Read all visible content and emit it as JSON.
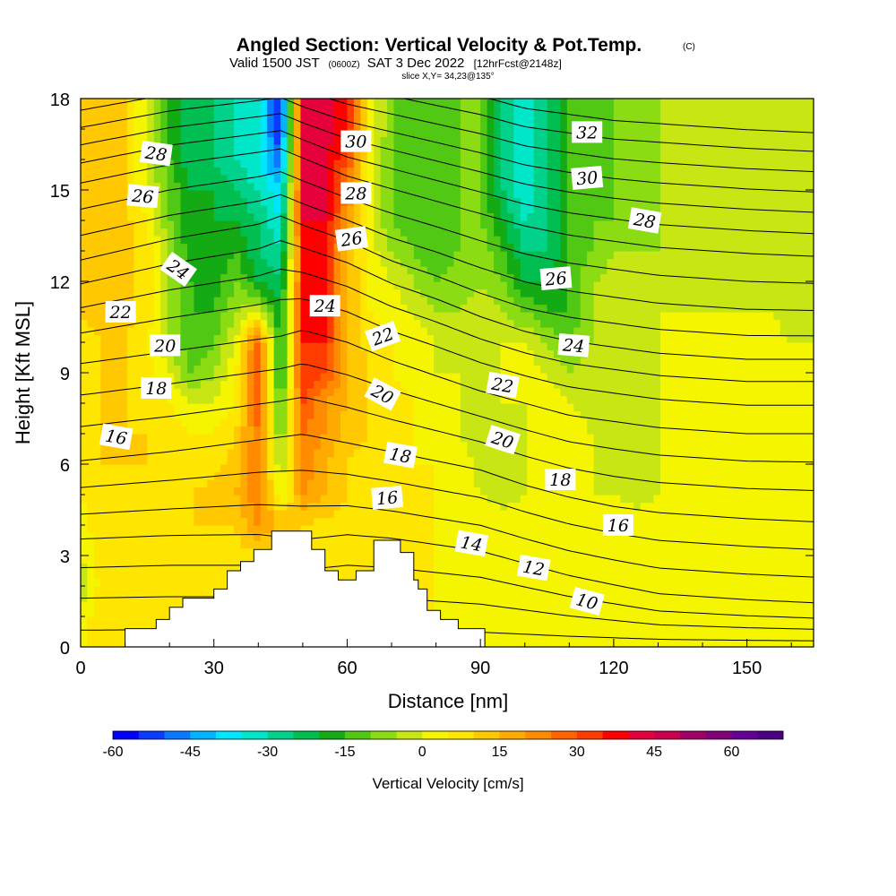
{
  "titles": {
    "main": "Angled Section: Vertical Velocity & Pot.Temp.",
    "main_mark": "(C)",
    "valid_prefix": "Valid 1500 JST",
    "valid_zulu": "(0600Z)",
    "valid_date": "SAT 3 Dec 2022",
    "valid_fcst": "[12hrFcst@2148z]",
    "slice": "slice X,Y= 34,23@135°"
  },
  "chart_data": {
    "type": "heatmap",
    "title": "Angled Section: Vertical Velocity & Pot.Temp.",
    "xlabel": "Distance [nm]",
    "ylabel": "Height [Kft MSL]",
    "xlim": [
      0,
      165
    ],
    "ylim": [
      0,
      18
    ],
    "x_ticks": [
      "0",
      "30",
      "60",
      "90",
      "120",
      "150"
    ],
    "y_ticks": [
      "0",
      "3",
      "6",
      "9",
      "12",
      "15",
      "18"
    ],
    "fill_variable": "Vertical Velocity [cm/s]",
    "contour_variable": "Pot.Temp. (C)",
    "colorbar": {
      "label": "Vertical Velocity [cm/s]",
      "min": -60,
      "max": 70,
      "step": 5,
      "tick_labels": [
        "-60",
        "-45",
        "-30",
        "-15",
        "0",
        "15",
        "30",
        "45",
        "60"
      ],
      "colors": [
        "#0000ff",
        "#0a3cff",
        "#0a78ff",
        "#00b4ff",
        "#00e6ff",
        "#00e6c8",
        "#00d28c",
        "#00be50",
        "#14aa14",
        "#50c814",
        "#8cdc14",
        "#c8e614",
        "#f5f500",
        "#ffe600",
        "#ffc800",
        "#ffaa00",
        "#ff8c00",
        "#ff6400",
        "#ff3c00",
        "#ff0000",
        "#e6003c",
        "#c80050",
        "#a00064",
        "#820078",
        "#640096",
        "#4b0082"
      ]
    },
    "w_cells": {
      "x": [
        0,
        5,
        10,
        15,
        20,
        25,
        30,
        35,
        40,
        45,
        50,
        55,
        60,
        65,
        70,
        75,
        80,
        85,
        90,
        95,
        100,
        105,
        110,
        115,
        120,
        125,
        130,
        135,
        140,
        145,
        150,
        155,
        160,
        165
      ],
      "z": [
        0,
        1,
        2,
        3,
        4,
        5,
        6,
        7,
        8,
        9,
        10,
        11,
        12,
        13,
        14,
        15,
        16,
        17,
        18
      ],
      "rows": [
        [
          3,
          8,
          8,
          8,
          8,
          8,
          8,
          8,
          8,
          8,
          8,
          8,
          8,
          8,
          8,
          8,
          5,
          3,
          3,
          3,
          3,
          3,
          3,
          3,
          3,
          3,
          3,
          3,
          3,
          3,
          3,
          3,
          3,
          3
        ],
        [
          3,
          8,
          8,
          8,
          8,
          8,
          8,
          8,
          8,
          8,
          8,
          8,
          8,
          8,
          8,
          8,
          5,
          3,
          3,
          3,
          3,
          3,
          3,
          3,
          3,
          3,
          3,
          3,
          3,
          3,
          3,
          3,
          3,
          3
        ],
        [
          -5,
          8,
          8,
          8,
          8,
          8,
          8,
          8,
          8,
          8,
          8,
          8,
          8,
          8,
          8,
          8,
          5,
          3,
          3,
          3,
          3,
          3,
          3,
          3,
          3,
          3,
          3,
          3,
          3,
          3,
          3,
          3,
          3,
          3
        ],
        [
          0,
          8,
          8,
          8,
          8,
          8,
          8,
          8,
          8,
          8,
          8,
          8,
          8,
          8,
          8,
          8,
          5,
          3,
          3,
          3,
          3,
          3,
          3,
          3,
          3,
          3,
          3,
          3,
          3,
          3,
          3,
          3,
          3,
          3
        ],
        [
          3,
          8,
          8,
          8,
          8,
          10,
          10,
          10,
          20,
          15,
          10,
          8,
          8,
          8,
          8,
          8,
          5,
          3,
          3,
          3,
          3,
          3,
          0,
          0,
          3,
          3,
          3,
          3,
          3,
          3,
          3,
          3,
          3,
          3
        ],
        [
          5,
          8,
          8,
          8,
          8,
          10,
          12,
          15,
          25,
          0,
          20,
          15,
          10,
          8,
          8,
          8,
          5,
          3,
          0,
          -2,
          0,
          3,
          3,
          0,
          0,
          -2,
          0,
          3,
          3,
          3,
          3,
          3,
          3,
          3
        ],
        [
          8,
          10,
          10,
          10,
          8,
          8,
          8,
          12,
          25,
          -5,
          25,
          15,
          10,
          8,
          8,
          5,
          5,
          3,
          -2,
          -2,
          0,
          3,
          3,
          0,
          -2,
          -2,
          0,
          3,
          3,
          3,
          3,
          3,
          3,
          3
        ],
        [
          8,
          10,
          10,
          10,
          8,
          5,
          5,
          10,
          25,
          -10,
          25,
          20,
          12,
          10,
          8,
          5,
          3,
          0,
          -2,
          -2,
          0,
          3,
          3,
          0,
          -2,
          -2,
          0,
          3,
          3,
          5,
          3,
          3,
          3,
          3
        ],
        [
          8,
          10,
          10,
          8,
          5,
          0,
          0,
          5,
          30,
          -15,
          30,
          20,
          15,
          10,
          8,
          5,
          3,
          0,
          -2,
          0,
          0,
          3,
          0,
          -2,
          -3,
          -2,
          0,
          3,
          3,
          3,
          3,
          3,
          3,
          3
        ],
        [
          8,
          10,
          10,
          8,
          0,
          -10,
          -5,
          5,
          30,
          -20,
          35,
          30,
          15,
          10,
          5,
          3,
          0,
          0,
          -2,
          0,
          3,
          0,
          -5,
          -3,
          -3,
          -2,
          0,
          3,
          3,
          3,
          3,
          3,
          3,
          3
        ],
        [
          8,
          10,
          10,
          5,
          -5,
          -15,
          -10,
          0,
          30,
          -20,
          35,
          35,
          15,
          8,
          5,
          3,
          0,
          -2,
          -2,
          0,
          0,
          -5,
          -10,
          -5,
          -3,
          -2,
          0,
          3,
          3,
          3,
          3,
          3,
          0,
          0
        ],
        [
          10,
          12,
          12,
          8,
          -5,
          -15,
          -15,
          -5,
          0,
          -20,
          35,
          35,
          15,
          5,
          3,
          0,
          -5,
          -5,
          -2,
          -5,
          -10,
          -15,
          -15,
          -5,
          -3,
          -2,
          0,
          0,
          0,
          0,
          0,
          0,
          -3,
          -3
        ],
        [
          10,
          12,
          12,
          8,
          -5,
          -15,
          -18,
          -10,
          -20,
          -25,
          35,
          35,
          15,
          5,
          0,
          -5,
          -10,
          -8,
          -5,
          -10,
          -20,
          -20,
          -15,
          -5,
          -3,
          -2,
          -2,
          -2,
          -2,
          -2,
          -2,
          -3,
          -3,
          -5
        ],
        [
          10,
          12,
          12,
          8,
          -5,
          -20,
          -20,
          -15,
          -25,
          -30,
          35,
          35,
          15,
          3,
          -5,
          -10,
          -15,
          -10,
          -5,
          -15,
          -25,
          -25,
          -15,
          -10,
          -5,
          -5,
          -5,
          -5,
          -5,
          -5,
          -5,
          -5,
          -5,
          -5
        ],
        [
          10,
          12,
          12,
          5,
          -10,
          -20,
          -20,
          -20,
          -25,
          -35,
          40,
          40,
          20,
          3,
          -10,
          -15,
          -15,
          -10,
          -10,
          -20,
          -30,
          -25,
          -15,
          -10,
          -10,
          -10,
          -5,
          -5,
          -5,
          -5,
          -5,
          -5,
          -5,
          -5
        ],
        [
          10,
          12,
          10,
          0,
          -10,
          -20,
          -20,
          -25,
          -30,
          -40,
          40,
          40,
          25,
          3,
          -10,
          -15,
          -15,
          -10,
          -10,
          -25,
          -35,
          -25,
          -15,
          -12,
          -10,
          -10,
          -5,
          -5,
          -5,
          -5,
          -3,
          -3,
          -3,
          -3
        ],
        [
          10,
          12,
          10,
          0,
          -15,
          -25,
          -25,
          -30,
          -35,
          -50,
          40,
          40,
          30,
          3,
          -10,
          -15,
          -15,
          -10,
          -10,
          -25,
          -35,
          -25,
          -15,
          -12,
          -10,
          -10,
          -5,
          -5,
          -3,
          -3,
          -3,
          -3,
          -3,
          -3
        ],
        [
          10,
          12,
          10,
          0,
          -15,
          -25,
          -25,
          -30,
          -35,
          -55,
          40,
          45,
          35,
          5,
          -10,
          -15,
          -15,
          -10,
          -10,
          -25,
          -35,
          -25,
          -15,
          -12,
          -10,
          -10,
          -5,
          -3,
          -3,
          -3,
          -3,
          -3,
          -3,
          -3
        ],
        [
          10,
          12,
          10,
          0,
          -15,
          -25,
          -25,
          -30,
          -35,
          -55,
          40,
          45,
          35,
          5,
          -10,
          -15,
          -15,
          -10,
          -10,
          -25,
          -35,
          -25,
          -15,
          -12,
          -10,
          -10,
          -5,
          -3,
          -3,
          -3,
          -3,
          -3,
          -3,
          -3
        ]
      ]
    },
    "terrain": [
      {
        "x": 0,
        "z": 0
      },
      {
        "x": 10,
        "z": 0
      },
      {
        "x": 10,
        "z": 0.6
      },
      {
        "x": 17,
        "z": 0.6
      },
      {
        "x": 17,
        "z": 0.9
      },
      {
        "x": 20,
        "z": 0.9
      },
      {
        "x": 20,
        "z": 1.3
      },
      {
        "x": 23,
        "z": 1.3
      },
      {
        "x": 23,
        "z": 1.6
      },
      {
        "x": 30,
        "z": 1.6
      },
      {
        "x": 30,
        "z": 1.9
      },
      {
        "x": 33,
        "z": 1.9
      },
      {
        "x": 33,
        "z": 2.5
      },
      {
        "x": 36,
        "z": 2.5
      },
      {
        "x": 36,
        "z": 2.8
      },
      {
        "x": 39,
        "z": 2.8
      },
      {
        "x": 39,
        "z": 3.2
      },
      {
        "x": 43,
        "z": 3.2
      },
      {
        "x": 43,
        "z": 3.8
      },
      {
        "x": 52,
        "z": 3.8
      },
      {
        "x": 52,
        "z": 3.2
      },
      {
        "x": 55,
        "z": 3.2
      },
      {
        "x": 55,
        "z": 2.5
      },
      {
        "x": 58,
        "z": 2.5
      },
      {
        "x": 58,
        "z": 2.2
      },
      {
        "x": 62,
        "z": 2.2
      },
      {
        "x": 62,
        "z": 2.5
      },
      {
        "x": 66,
        "z": 2.5
      },
      {
        "x": 66,
        "z": 3.5
      },
      {
        "x": 72,
        "z": 3.5
      },
      {
        "x": 72,
        "z": 3.1
      },
      {
        "x": 75,
        "z": 3.1
      },
      {
        "x": 75,
        "z": 2.2
      },
      {
        "x": 76,
        "z": 2.2
      },
      {
        "x": 76,
        "z": 1.9
      },
      {
        "x": 78,
        "z": 1.9
      },
      {
        "x": 78,
        "z": 1.2
      },
      {
        "x": 81,
        "z": 1.2
      },
      {
        "x": 81,
        "z": 0.9
      },
      {
        "x": 85,
        "z": 0.9
      },
      {
        "x": 85,
        "z": 0.6
      },
      {
        "x": 91,
        "z": 0.6
      },
      {
        "x": 91,
        "z": 0
      },
      {
        "x": 165,
        "z": 0
      }
    ],
    "theta_levels": [
      8,
      9,
      10,
      11,
      12,
      13,
      14,
      15,
      16,
      17,
      18,
      19,
      20,
      21,
      22,
      23,
      24,
      25,
      26,
      27,
      28,
      29,
      30,
      31,
      32
    ],
    "theta_profile": {
      "z": [
        0,
        1,
        2,
        3,
        4,
        5,
        6,
        7,
        8,
        9,
        10,
        11,
        12,
        13,
        14,
        15,
        16,
        17,
        18
      ],
      "theta": [
        9.5,
        10.5,
        11.6,
        12.7,
        13.9,
        15.0,
        16.1,
        17.0,
        18.0,
        19.0,
        20.0,
        21.2,
        22.5,
        23.8,
        25.0,
        26.2,
        27.8,
        29.5,
        31.2
      ]
    },
    "theta_perturbation": {
      "x_knots": [
        0,
        20,
        40,
        45,
        50,
        60,
        70,
        80,
        90,
        100,
        110,
        120,
        130,
        140,
        150,
        165
      ],
      "z_knots": [
        0,
        3,
        6,
        9,
        12,
        15,
        18
      ],
      "dz": [
        [
          0,
          0,
          0,
          0,
          0,
          0,
          0,
          0,
          0,
          0,
          0,
          0,
          0,
          0,
          0,
          0
        ],
        [
          0.3,
          0.4,
          0.4,
          0.3,
          0.2,
          0.4,
          0.3,
          0.1,
          -0.1,
          -0.5,
          -0.9,
          -1.2,
          -1.5,
          -1.6,
          -1.7,
          -1.8
        ],
        [
          0.2,
          0.5,
          0.9,
          1.0,
          1.1,
          0.8,
          0.5,
          0.2,
          -0.1,
          -0.6,
          -1.0,
          -1.3,
          -1.5,
          -1.6,
          -1.7,
          -1.8
        ],
        [
          0.3,
          0.7,
          1.1,
          1.2,
          1.4,
          1.0,
          0.4,
          -0.1,
          -0.6,
          -1.0,
          -1.4,
          -1.6,
          -1.8,
          -1.9,
          -2.0,
          -2.0
        ],
        [
          0.3,
          1.0,
          1.5,
          1.8,
          1.5,
          1.0,
          0.3,
          -0.2,
          -0.8,
          -1.3,
          -1.6,
          -1.8,
          -2.0,
          -2.1,
          -2.2,
          -2.2
        ],
        [
          0.4,
          1.0,
          1.4,
          1.5,
          1.2,
          0.6,
          0.2,
          -0.2,
          -0.6,
          -1.0,
          -1.3,
          -1.5,
          -1.7,
          -1.8,
          -1.9,
          -2.0
        ],
        [
          0.3,
          0.8,
          1.1,
          1.2,
          0.9,
          0.5,
          0.2,
          -0.1,
          -0.4,
          -0.8,
          -1.0,
          -1.2,
          -1.3,
          -1.4,
          -1.5,
          -1.6
        ]
      ]
    },
    "contour_labels": [
      {
        "text": "28",
        "x": 17,
        "z": 16.2,
        "angle": 8
      },
      {
        "text": "26",
        "x": 14,
        "z": 14.8,
        "angle": 5
      },
      {
        "text": "24",
        "x": 22,
        "z": 12.4,
        "angle": 35
      },
      {
        "text": "22",
        "x": 9,
        "z": 11.0,
        "angle": 0
      },
      {
        "text": "20",
        "x": 19,
        "z": 9.9,
        "angle": 0
      },
      {
        "text": "18",
        "x": 17,
        "z": 8.5,
        "angle": 0
      },
      {
        "text": "16",
        "x": 8,
        "z": 6.9,
        "angle": 10
      },
      {
        "text": "30",
        "x": 62,
        "z": 16.6,
        "angle": 0
      },
      {
        "text": "28",
        "x": 62,
        "z": 14.9,
        "angle": 0
      },
      {
        "text": "26",
        "x": 61,
        "z": 13.4,
        "angle": -8
      },
      {
        "text": "24",
        "x": 55,
        "z": 11.2,
        "angle": 0
      },
      {
        "text": "22",
        "x": 68,
        "z": 10.2,
        "angle": -20
      },
      {
        "text": "20",
        "x": 68,
        "z": 8.3,
        "angle": 28
      },
      {
        "text": "18",
        "x": 72,
        "z": 6.3,
        "angle": 10
      },
      {
        "text": "16",
        "x": 69,
        "z": 4.9,
        "angle": -5
      },
      {
        "text": "32",
        "x": 114,
        "z": 16.9,
        "angle": 0
      },
      {
        "text": "30",
        "x": 114,
        "z": 15.4,
        "angle": -5
      },
      {
        "text": "28",
        "x": 127,
        "z": 14.0,
        "angle": 10
      },
      {
        "text": "26",
        "x": 107,
        "z": 12.1,
        "angle": -5
      },
      {
        "text": "24",
        "x": 111,
        "z": 9.9,
        "angle": 5
      },
      {
        "text": "22",
        "x": 95,
        "z": 8.6,
        "angle": 10
      },
      {
        "text": "20",
        "x": 95,
        "z": 6.8,
        "angle": 18
      },
      {
        "text": "18",
        "x": 108,
        "z": 5.5,
        "angle": 0
      },
      {
        "text": "16",
        "x": 121,
        "z": 4.0,
        "angle": 0
      },
      {
        "text": "14",
        "x": 88,
        "z": 3.4,
        "angle": 10
      },
      {
        "text": "12",
        "x": 102,
        "z": 2.6,
        "angle": 10
      },
      {
        "text": "10",
        "x": 114,
        "z": 1.5,
        "angle": 15
      }
    ]
  }
}
